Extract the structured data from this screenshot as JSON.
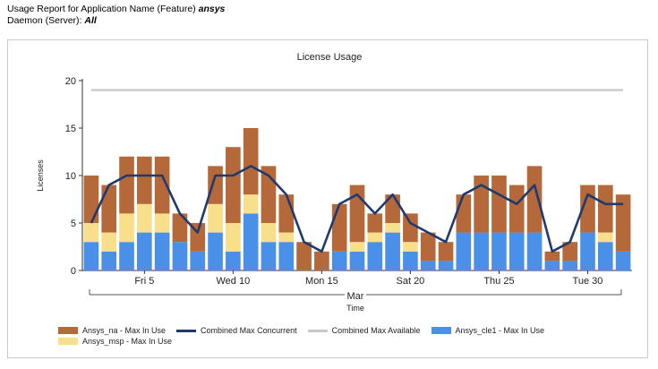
{
  "header": {
    "line1_prefix": "Usage Report for Application Name (Feature)",
    "line1_value": "ansys",
    "line2_prefix": "Daemon (Server):",
    "line2_value": "All"
  },
  "colors": {
    "na": "#b5683a",
    "msp": "#f8df8c",
    "cle1": "#4a8fe8",
    "combined_line": "#1f3a6e",
    "available_line": "#c8c8c8"
  },
  "chart_data": {
    "type": "bar",
    "title": "License Usage",
    "xlabel": "Time",
    "ylabel": "Licenses",
    "month_label": "Mar",
    "ylim": [
      0,
      20
    ],
    "yticks": [
      0,
      5,
      10,
      15,
      20
    ],
    "grid": false,
    "legend_position": "bottom",
    "tick_labels": [
      {
        "label": "Fri 5",
        "index": 3
      },
      {
        "label": "Wed 10",
        "index": 8
      },
      {
        "label": "Mon 15",
        "index": 13
      },
      {
        "label": "Sat 20",
        "index": 18
      },
      {
        "label": "Thu 25",
        "index": 23
      },
      {
        "label": "Tue 30",
        "index": 28
      }
    ],
    "stacked_series": [
      {
        "name": "Ansys_cle1 - Max In Use",
        "color_key": "cle1",
        "values": [
          3,
          2,
          3,
          4,
          4,
          3,
          2,
          4,
          2,
          6,
          3,
          3,
          0,
          0,
          2,
          2,
          3,
          4,
          2,
          1,
          1,
          4,
          4,
          4,
          4,
          4,
          1,
          1,
          4,
          3,
          2
        ]
      },
      {
        "name": "Ansys_msp - Max In Use",
        "color_key": "msp",
        "values": [
          2,
          2,
          3,
          3,
          2,
          0,
          0,
          3,
          3,
          2,
          2,
          1,
          0,
          0,
          0,
          1,
          1,
          1,
          1,
          0,
          0,
          0,
          0,
          0,
          0,
          0,
          0,
          0,
          0,
          1,
          0
        ]
      },
      {
        "name": "Ansys_na - Max In Use",
        "color_key": "na",
        "values": [
          5,
          5,
          6,
          5,
          6,
          3,
          3,
          4,
          8,
          7,
          6,
          4,
          3,
          2,
          5,
          6,
          2,
          3,
          3,
          3,
          2,
          4,
          6,
          6,
          5,
          7,
          1,
          2,
          5,
          5,
          6
        ]
      }
    ],
    "line_series": [
      {
        "name": "Combined Max Concurrent",
        "color_key": "combined_line",
        "values": [
          5,
          9,
          10,
          10,
          10,
          6,
          4,
          10,
          10,
          11,
          10,
          8,
          3,
          2,
          7,
          8,
          6,
          8,
          5,
          4,
          3,
          8,
          9,
          8,
          7,
          9,
          2,
          3,
          8,
          7,
          7
        ]
      },
      {
        "name": "Combined Max Available",
        "color_key": "available_line",
        "values": [
          19,
          19,
          19,
          19,
          19,
          19,
          19,
          19,
          19,
          19,
          19,
          19,
          19,
          19,
          19,
          19,
          19,
          19,
          19,
          19,
          19,
          19,
          19,
          19,
          19,
          19,
          19,
          19,
          19,
          19,
          19
        ]
      }
    ],
    "legend": [
      [
        "Ansys_na - Max In Use",
        "Combined Max Concurrent",
        "Combined Max Available",
        "Ansys_cle1 - Max In Use"
      ],
      [
        "Ansys_msp - Max In Use"
      ]
    ]
  }
}
